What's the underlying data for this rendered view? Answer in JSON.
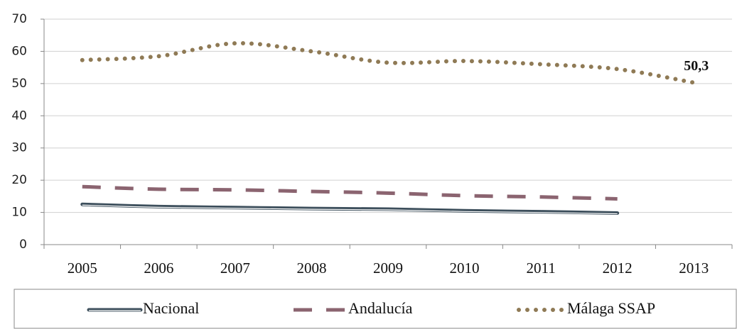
{
  "chart_data": {
    "type": "line",
    "categories": [
      "2005",
      "2006",
      "2007",
      "2008",
      "2009",
      "2010",
      "2011",
      "2012",
      "2013"
    ],
    "series": [
      {
        "name": "Nacional",
        "color": "#3d4f5c",
        "style": "solid",
        "values": [
          12.5,
          11.8,
          11.5,
          11.2,
          11,
          10.5,
          10.2,
          9.8,
          null
        ]
      },
      {
        "name": "Andalucía",
        "color": "#8b6470",
        "style": "dashed",
        "values": [
          18,
          17.2,
          17,
          16.5,
          16,
          15.2,
          14.8,
          14.2,
          null
        ]
      },
      {
        "name": "Málaga SSAP",
        "color": "#8f7a55",
        "style": "dotted",
        "values": [
          57.3,
          58.5,
          62.5,
          60,
          56.5,
          57,
          56,
          54.5,
          50.3
        ],
        "value_labels": [
          null,
          null,
          null,
          null,
          null,
          null,
          null,
          null,
          "50,3"
        ]
      }
    ],
    "ylim": [
      0,
      70
    ],
    "yticks": [
      0,
      10,
      20,
      30,
      40,
      50,
      60,
      70
    ],
    "grid": true,
    "legend": "bottom"
  }
}
